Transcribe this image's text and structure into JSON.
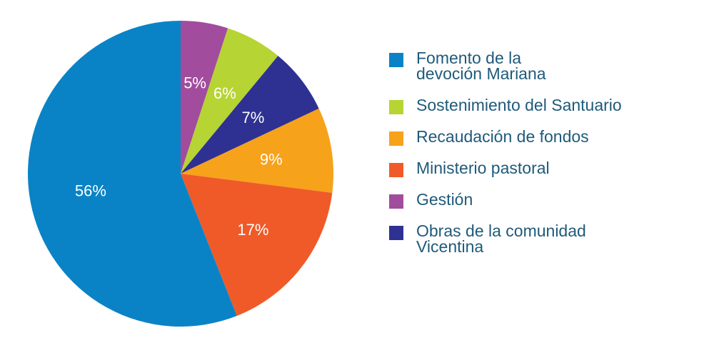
{
  "chart_data": {
    "type": "pie",
    "start_angle": "12 o'clock",
    "direction": "clockwise",
    "slices": [
      {
        "label": "Gestión",
        "value": 5,
        "value_label": "5%",
        "color": "#a24c9e"
      },
      {
        "label": "Sostenimiento del Santuario",
        "value": 6,
        "value_label": "6%",
        "color": "#b6d433"
      },
      {
        "label": "Obras de la comunidad Vicentina",
        "value": 7,
        "value_label": "7%",
        "color": "#2e3192"
      },
      {
        "label": "Recaudación de fondos",
        "value": 9,
        "value_label": "9%",
        "color": "#f7a21b"
      },
      {
        "label": "Ministerio pastoral",
        "value": 17,
        "value_label": "17%",
        "color": "#f05a28"
      },
      {
        "label": "Fomento de la devoción Mariana",
        "value": 56,
        "value_label": "56%",
        "color": "#0a83c6"
      }
    ],
    "legend": {
      "placement": "right",
      "entries": [
        {
          "lines": [
            "Fomento de la",
            "devoción Mariana"
          ],
          "color": "#0a83c6"
        },
        {
          "lines": [
            "Sostenimiento del Santuario"
          ],
          "color": "#b6d433"
        },
        {
          "lines": [
            "Recaudación de fondos"
          ],
          "color": "#f7a21b"
        },
        {
          "lines": [
            "Ministerio pastoral"
          ],
          "color": "#f05a28"
        },
        {
          "lines": [
            "Gestión"
          ],
          "color": "#a24c9e"
        },
        {
          "lines": [
            "Obras de la comunidad",
            "Vicentina"
          ],
          "color": "#2e3192"
        }
      ]
    },
    "colors": {
      "label_text": "#ffffff",
      "legend_text": "#1f5a7a"
    }
  }
}
